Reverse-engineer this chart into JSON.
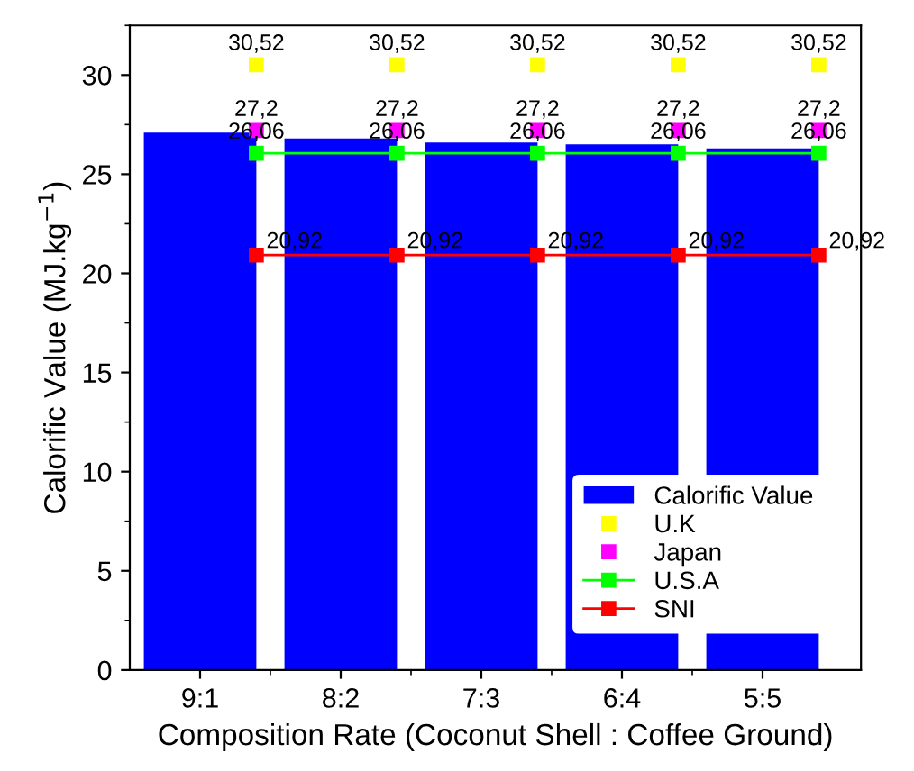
{
  "chart_data": {
    "type": "bar",
    "xlabel": "Composition Rate (Coconut Shell : Coffee Ground)",
    "ylabel": "Calorific Value (MJ.kg$^{−1}$)",
    "categories": [
      "9:1",
      "8:2",
      "7:3",
      "6:4",
      "5:5"
    ],
    "ylim": [
      0,
      32.5
    ],
    "yticks": [
      0,
      5,
      10,
      15,
      20,
      25,
      30
    ],
    "legend": "bottom right",
    "marker": "square",
    "series": [
      {
        "name": "Calorific Value",
        "color": "#0000ff",
        "values": [
          27.1,
          26.8,
          26.6,
          26.5,
          26.3
        ]
      },
      {
        "name": "U.K",
        "type": "scatter",
        "color": "#ffff00",
        "values": [
          30.52,
          30.52,
          30.52,
          30.52,
          30.52
        ],
        "value_labels": [
          "30,52",
          "30,52",
          "30,52",
          "30,52",
          "30,52"
        ]
      },
      {
        "name": "Japan",
        "type": "scatter",
        "color": "#ff00ff",
        "values": [
          27.2,
          27.2,
          27.2,
          27.2,
          27.2
        ],
        "value_labels": [
          "27,2",
          "27,2",
          "27,2",
          "27,2",
          "27,2"
        ]
      },
      {
        "name": "U.S.A",
        "type": "line",
        "color": "#00ff00",
        "values": [
          26.06,
          26.06,
          26.06,
          26.06,
          26.06
        ],
        "value_labels": [
          "26,06",
          "26,06",
          "26,06",
          "26,06",
          "26,06"
        ]
      },
      {
        "name": "SNI",
        "type": "line",
        "color": "#ff0000",
        "values": [
          20.92,
          20.92,
          20.92,
          20.92,
          20.92
        ],
        "value_labels": [
          "20,92",
          "20,92",
          "20,92",
          "20,92",
          "20,92"
        ]
      }
    ]
  }
}
